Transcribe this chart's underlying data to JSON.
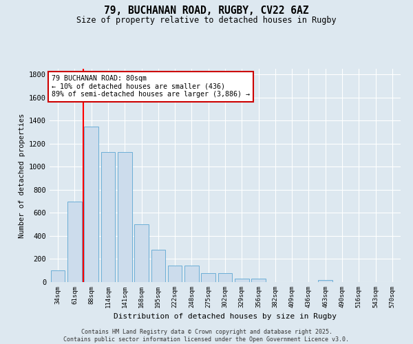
{
  "title_line1": "79, BUCHANAN ROAD, RUGBY, CV22 6AZ",
  "title_line2": "Size of property relative to detached houses in Rugby",
  "xlabel": "Distribution of detached houses by size in Rugby",
  "ylabel": "Number of detached properties",
  "categories": [
    "34sqm",
    "61sqm",
    "88sqm",
    "114sqm",
    "141sqm",
    "168sqm",
    "195sqm",
    "222sqm",
    "248sqm",
    "275sqm",
    "302sqm",
    "329sqm",
    "356sqm",
    "382sqm",
    "409sqm",
    "436sqm",
    "463sqm",
    "490sqm",
    "516sqm",
    "543sqm",
    "570sqm"
  ],
  "values": [
    100,
    700,
    1350,
    1130,
    1130,
    500,
    280,
    145,
    145,
    75,
    75,
    30,
    30,
    0,
    0,
    0,
    15,
    0,
    0,
    0,
    0
  ],
  "bar_color": "#ccdcec",
  "bar_edge_color": "#6baed6",
  "background_color": "#dde8f0",
  "red_line_x": 1.5,
  "annotation_line1": "79 BUCHANAN ROAD: 80sqm",
  "annotation_line2": "← 10% of detached houses are smaller (436)",
  "annotation_line3": "89% of semi-detached houses are larger (3,886) →",
  "annotation_box_color": "#ffffff",
  "annotation_box_edge": "#cc0000",
  "ylim": [
    0,
    1850
  ],
  "yticks": [
    0,
    200,
    400,
    600,
    800,
    1000,
    1200,
    1400,
    1600,
    1800
  ],
  "footer_line1": "Contains HM Land Registry data © Crown copyright and database right 2025.",
  "footer_line2": "Contains public sector information licensed under the Open Government Licence v3.0."
}
